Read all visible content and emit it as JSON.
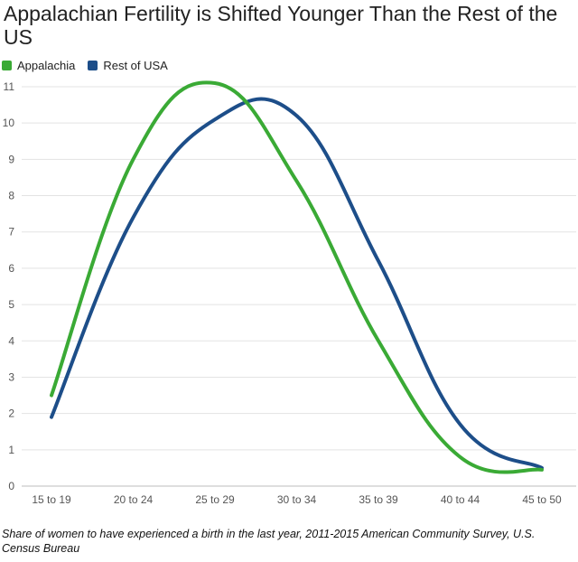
{
  "chart_data": {
    "type": "line",
    "title": "Appalachian Fertility is Shifted Younger Than the Rest of the US",
    "caption": "Share of women to have experienced a birth in the last year, 2011-2015 American Community Survey, U.S. Census Bureau",
    "categories": [
      "15 to 19",
      "20 to 24",
      "25 to 29",
      "30 to 34",
      "35 to 39",
      "40 to 44",
      "45 to 50"
    ],
    "series": [
      {
        "name": "Appalachia",
        "color": "#3aaa35",
        "values": [
          2.5,
          9.0,
          11.1,
          8.4,
          4.0,
          0.8,
          0.45
        ]
      },
      {
        "name": "Rest of USA",
        "color": "#1d4e89",
        "values": [
          1.9,
          7.4,
          10.1,
          10.2,
          6.2,
          1.7,
          0.5
        ]
      }
    ],
    "ylim": [
      0,
      11
    ],
    "yticks": [
      0,
      1,
      2,
      3,
      4,
      5,
      6,
      7,
      8,
      9,
      10,
      11
    ],
    "grid": true,
    "legend_position": "top-left",
    "xlabel": "",
    "ylabel": ""
  }
}
